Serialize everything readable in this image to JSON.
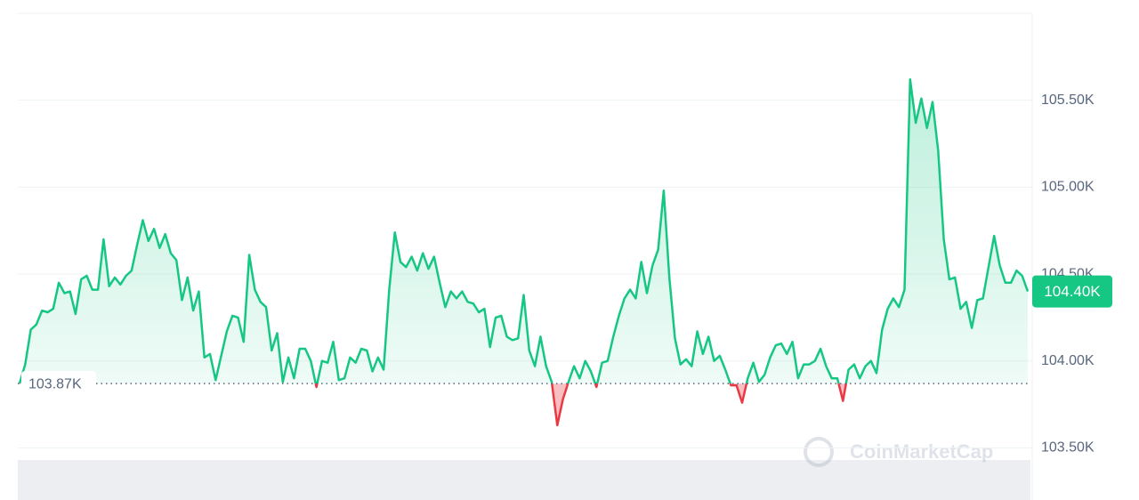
{
  "chart_data": {
    "type": "line",
    "values": [
      103.87,
      103.98,
      104.18,
      104.21,
      104.29,
      104.28,
      104.3,
      104.45,
      104.39,
      104.4,
      104.27,
      104.47,
      104.49,
      104.41,
      104.41,
      104.7,
      104.43,
      104.48,
      104.44,
      104.49,
      104.52,
      104.67,
      104.81,
      104.69,
      104.76,
      104.65,
      104.73,
      104.62,
      104.58,
      104.35,
      104.48,
      104.29,
      104.4,
      104.02,
      104.04,
      103.89,
      104.03,
      104.17,
      104.26,
      104.25,
      104.11,
      104.61,
      104.41,
      104.34,
      104.31,
      104.06,
      104.16,
      103.88,
      104.02,
      103.9,
      104.07,
      104.07,
      104.0,
      103.85,
      104.0,
      103.99,
      104.11,
      103.89,
      103.9,
      104.02,
      103.99,
      104.07,
      104.06,
      103.94,
      104.02,
      103.95,
      104.41,
      104.74,
      104.57,
      104.54,
      104.6,
      104.52,
      104.62,
      104.53,
      104.6,
      104.45,
      104.31,
      104.4,
      104.36,
      104.4,
      104.34,
      104.33,
      104.28,
      104.3,
      104.08,
      104.25,
      104.26,
      104.14,
      104.12,
      104.13,
      104.38,
      104.06,
      103.97,
      104.14,
      103.97,
      103.88,
      103.63,
      103.78,
      103.88,
      103.97,
      103.9,
      104.0,
      103.94,
      103.85,
      103.99,
      104.0,
      104.14,
      104.26,
      104.36,
      104.41,
      104.36,
      104.57,
      104.39,
      104.55,
      104.64,
      104.98,
      104.48,
      104.13,
      103.98,
      104.01,
      103.97,
      104.17,
      104.04,
      104.14,
      104.0,
      104.03,
      103.95,
      103.86,
      103.86,
      103.76,
      103.9,
      103.99,
      103.88,
      103.92,
      104.02,
      104.09,
      104.1,
      104.04,
      104.11,
      103.9,
      103.98,
      103.98,
      104.0,
      104.07,
      103.97,
      103.9,
      103.9,
      103.77,
      103.95,
      103.98,
      103.9,
      103.97,
      104.0,
      103.93,
      104.18,
      104.3,
      104.36,
      104.31,
      104.41,
      105.62,
      105.37,
      105.51,
      105.34,
      105.49,
      105.21,
      104.7,
      104.47,
      104.48,
      104.3,
      104.34,
      104.19,
      104.35,
      104.36,
      104.54,
      104.72,
      104.55,
      104.45,
      104.45,
      104.52,
      104.49,
      104.4
    ],
    "color": "#16c784",
    "color_below": "#ea3943",
    "reference": {
      "value": 103.87,
      "label": "103.87K"
    },
    "last_price": {
      "value": 104.4,
      "label": "104.40K"
    },
    "ylim": [
      103.2,
      106.0
    ],
    "yticks": [
      {
        "value": 105.5,
        "label": "105.50K"
      },
      {
        "value": 105.0,
        "label": "105.00K"
      },
      {
        "value": 104.5,
        "label": "104.50K"
      },
      {
        "value": 104.0,
        "label": "104.00K"
      },
      {
        "value": 103.5,
        "label": "103.50K"
      }
    ],
    "grid": true,
    "watermark": "CoinMarketCap"
  }
}
